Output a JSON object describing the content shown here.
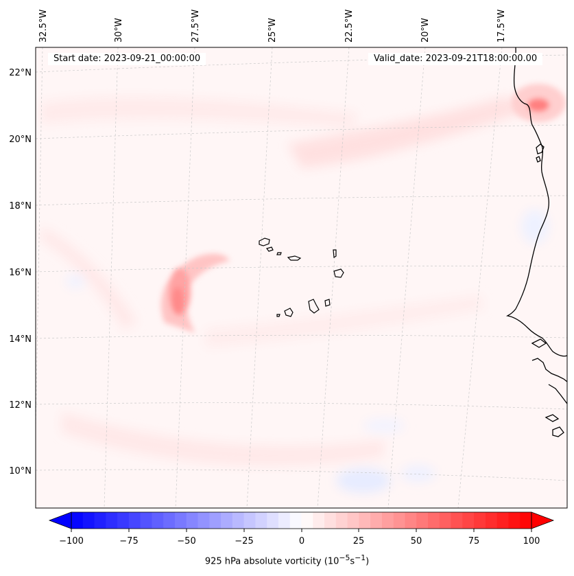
{
  "map": {
    "start_label": "Start date: 2023-09-21_00:00:00",
    "valid_label": "Valid_date: 2023-09-21T18:00:00.00",
    "lon_labels": [
      "32.5°W",
      "30°W",
      "27.5°W",
      "25°W",
      "22.5°W",
      "20°W",
      "17.5°W"
    ],
    "lat_labels": [
      "22°N",
      "20°N",
      "18°N",
      "16°N",
      "14°N",
      "12°N",
      "10°N"
    ],
    "features": [
      "Cape Verde Islands",
      "West African coastline",
      "vorticity maximum near 15°N 27.5°W"
    ]
  },
  "colorbar": {
    "ticks": [
      "−100",
      "−75",
      "−50",
      "−25",
      "0",
      "25",
      "50",
      "75",
      "100"
    ],
    "vmin": -100,
    "vmax": 100,
    "caption_main": "925 hPa absolute vorticity (10",
    "caption_exp1": "−5",
    "caption_mid": "s",
    "caption_exp2": "−1",
    "caption_end": ")",
    "neg_color": "#0000ff",
    "mid_color": "#ffffff",
    "pos_color": "#ff0000"
  }
}
